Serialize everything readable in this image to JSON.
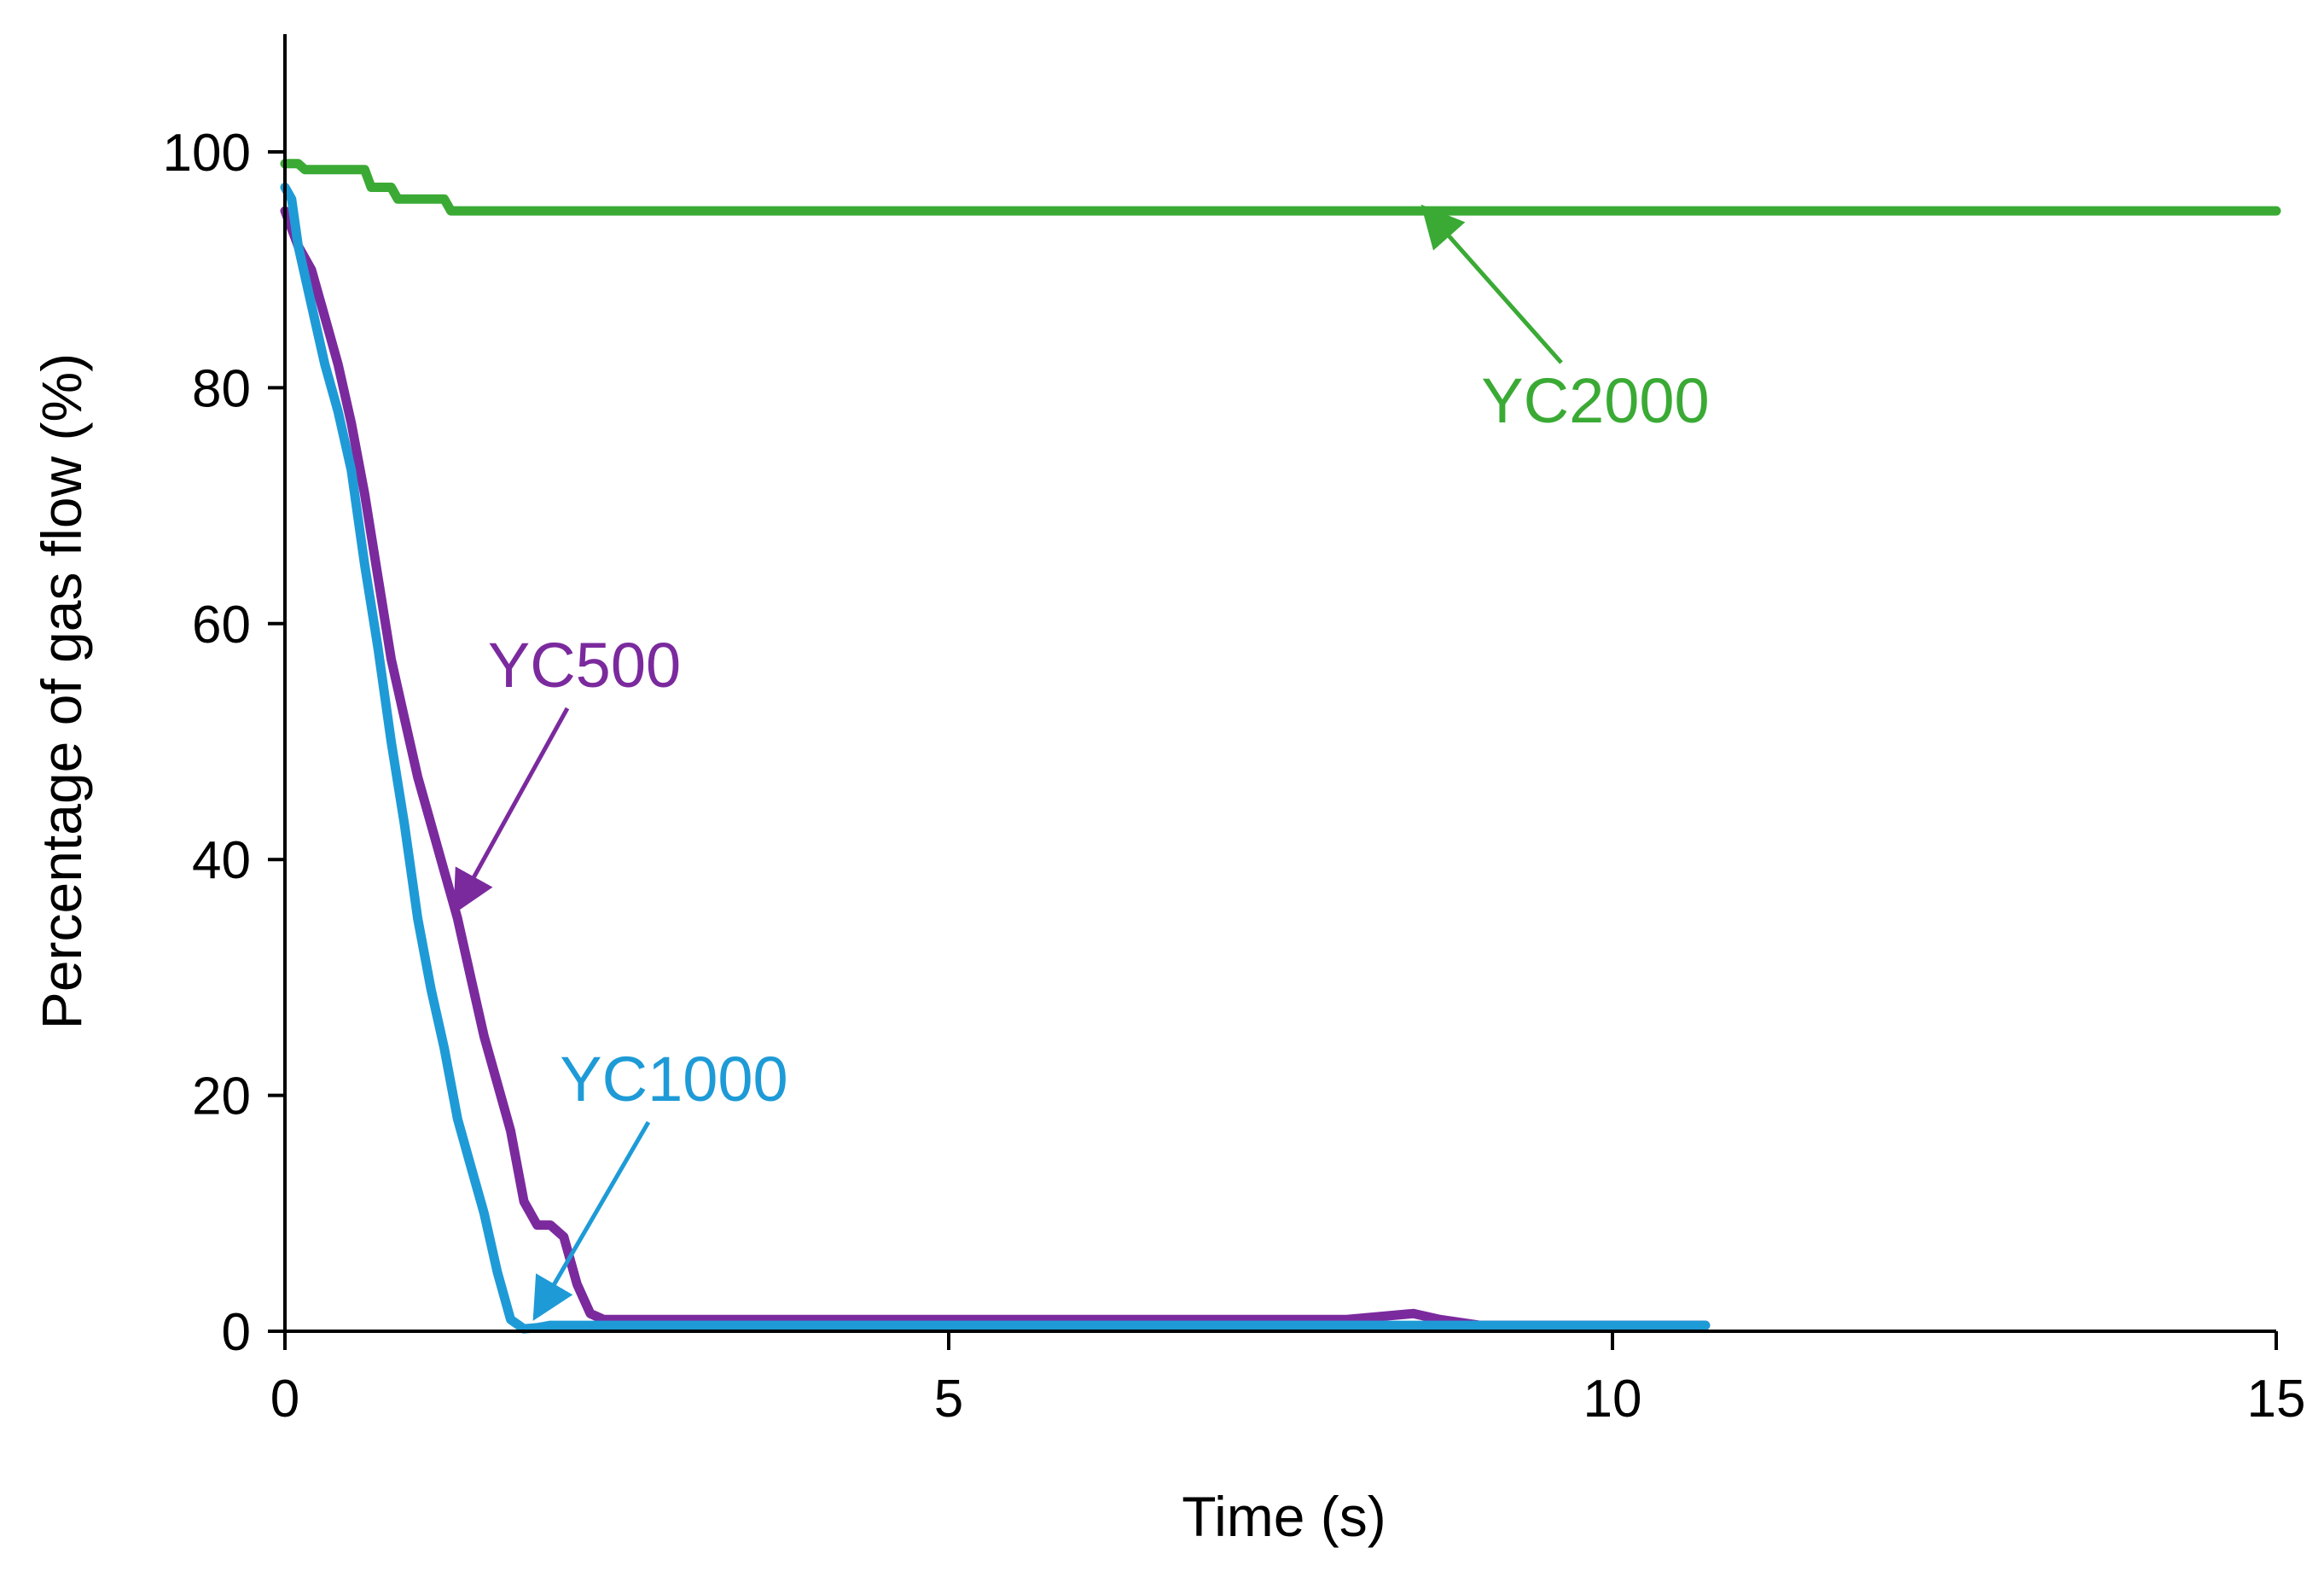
{
  "chart_data": {
    "type": "line",
    "title": "",
    "xlabel": "Time (s)",
    "ylabel": "Percentage of gas flow (%)",
    "xlim": [
      0,
      15
    ],
    "ylim": [
      0,
      110
    ],
    "xticks": [
      0,
      5,
      10,
      15
    ],
    "yticks": [
      0,
      20,
      40,
      60,
      80,
      100
    ],
    "grid": false,
    "legend": "none (series labelled inline with arrows)",
    "series": [
      {
        "name": "YC2000",
        "color": "#3aaa35",
        "x": [
          0,
          0.1,
          0.15,
          0.6,
          0.65,
          0.8,
          0.85,
          1.2,
          1.25,
          15.0
        ],
        "y": [
          99,
          99,
          98.5,
          98.5,
          97,
          97,
          96,
          96,
          95,
          95
        ],
        "oscillation": 0.8
      },
      {
        "name": "YC500",
        "color": "#7b2a9e",
        "x": [
          0,
          0.1,
          0.2,
          0.3,
          0.4,
          0.5,
          0.6,
          0.7,
          0.8,
          0.9,
          1.0,
          1.1,
          1.2,
          1.3,
          1.4,
          1.5,
          1.6,
          1.7,
          1.8,
          1.9,
          2.0,
          2.1,
          2.2,
          2.3,
          2.4,
          3.0,
          4.0,
          5.0,
          6.0,
          7.0,
          8.0,
          8.5,
          8.7,
          9.0,
          10.7
        ],
        "y": [
          95,
          92,
          90,
          86,
          82,
          77,
          71,
          64,
          57,
          52,
          47,
          43,
          39,
          35,
          30,
          25,
          21,
          17,
          11,
          9,
          9,
          8,
          4,
          1.5,
          1,
          1,
          1,
          1,
          1,
          1,
          1,
          1.5,
          1,
          0.5,
          0.5
        ]
      },
      {
        "name": "YC1000",
        "color": "#1e9bd7",
        "x": [
          0,
          0.05,
          0.1,
          0.2,
          0.3,
          0.4,
          0.5,
          0.6,
          0.7,
          0.8,
          0.9,
          1.0,
          1.1,
          1.2,
          1.3,
          1.4,
          1.5,
          1.6,
          1.7,
          1.8,
          1.9,
          2.0,
          3.0,
          4.0,
          5.0,
          6.0,
          7.0,
          8.0,
          9.0,
          10.0,
          10.7
        ],
        "y": [
          97,
          96,
          92,
          87,
          82,
          78,
          73,
          65,
          58,
          50,
          43,
          35,
          29,
          24,
          18,
          14,
          10,
          5,
          1,
          0.2,
          0.3,
          0.5,
          0.5,
          0.5,
          0.5,
          0.5,
          0.5,
          0.5,
          0.5,
          0.5,
          0.5
        ]
      }
    ],
    "annotations": [
      {
        "text": "YC2000",
        "series": "YC2000",
        "arrow_to": [
          8.6,
          95
        ]
      },
      {
        "text": "YC500",
        "series": "YC500",
        "arrow_to": [
          1.3,
          36
        ]
      },
      {
        "text": "YC1000",
        "series": "YC1000",
        "arrow_to": [
          1.9,
          1.5
        ]
      }
    ]
  }
}
